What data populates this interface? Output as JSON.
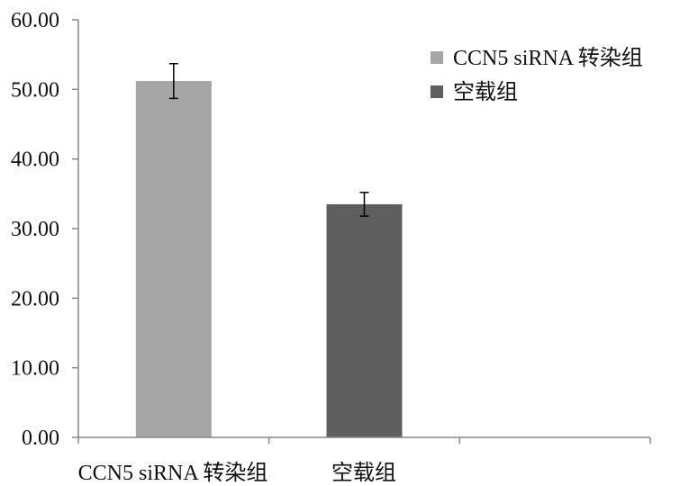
{
  "chart_data": {
    "type": "bar",
    "categories": [
      "CCN5 siRNA 转染组",
      "空载组"
    ],
    "series": [
      {
        "name": "CCN5 siRNA 转染组",
        "values": [
          51.2,
          null
        ],
        "errors": [
          2.5,
          null
        ],
        "color": "#a6a6a6"
      },
      {
        "name": "空载组",
        "values": [
          null,
          33.5
        ],
        "errors": [
          null,
          1.7
        ],
        "color": "#5f5f5f"
      }
    ],
    "ylim": [
      0,
      60
    ],
    "yticks": [
      "0.00",
      "10.00",
      "20.00",
      "30.00",
      "40.00",
      "50.00",
      "60.00"
    ],
    "grid": false,
    "legend_position": "top-right"
  }
}
